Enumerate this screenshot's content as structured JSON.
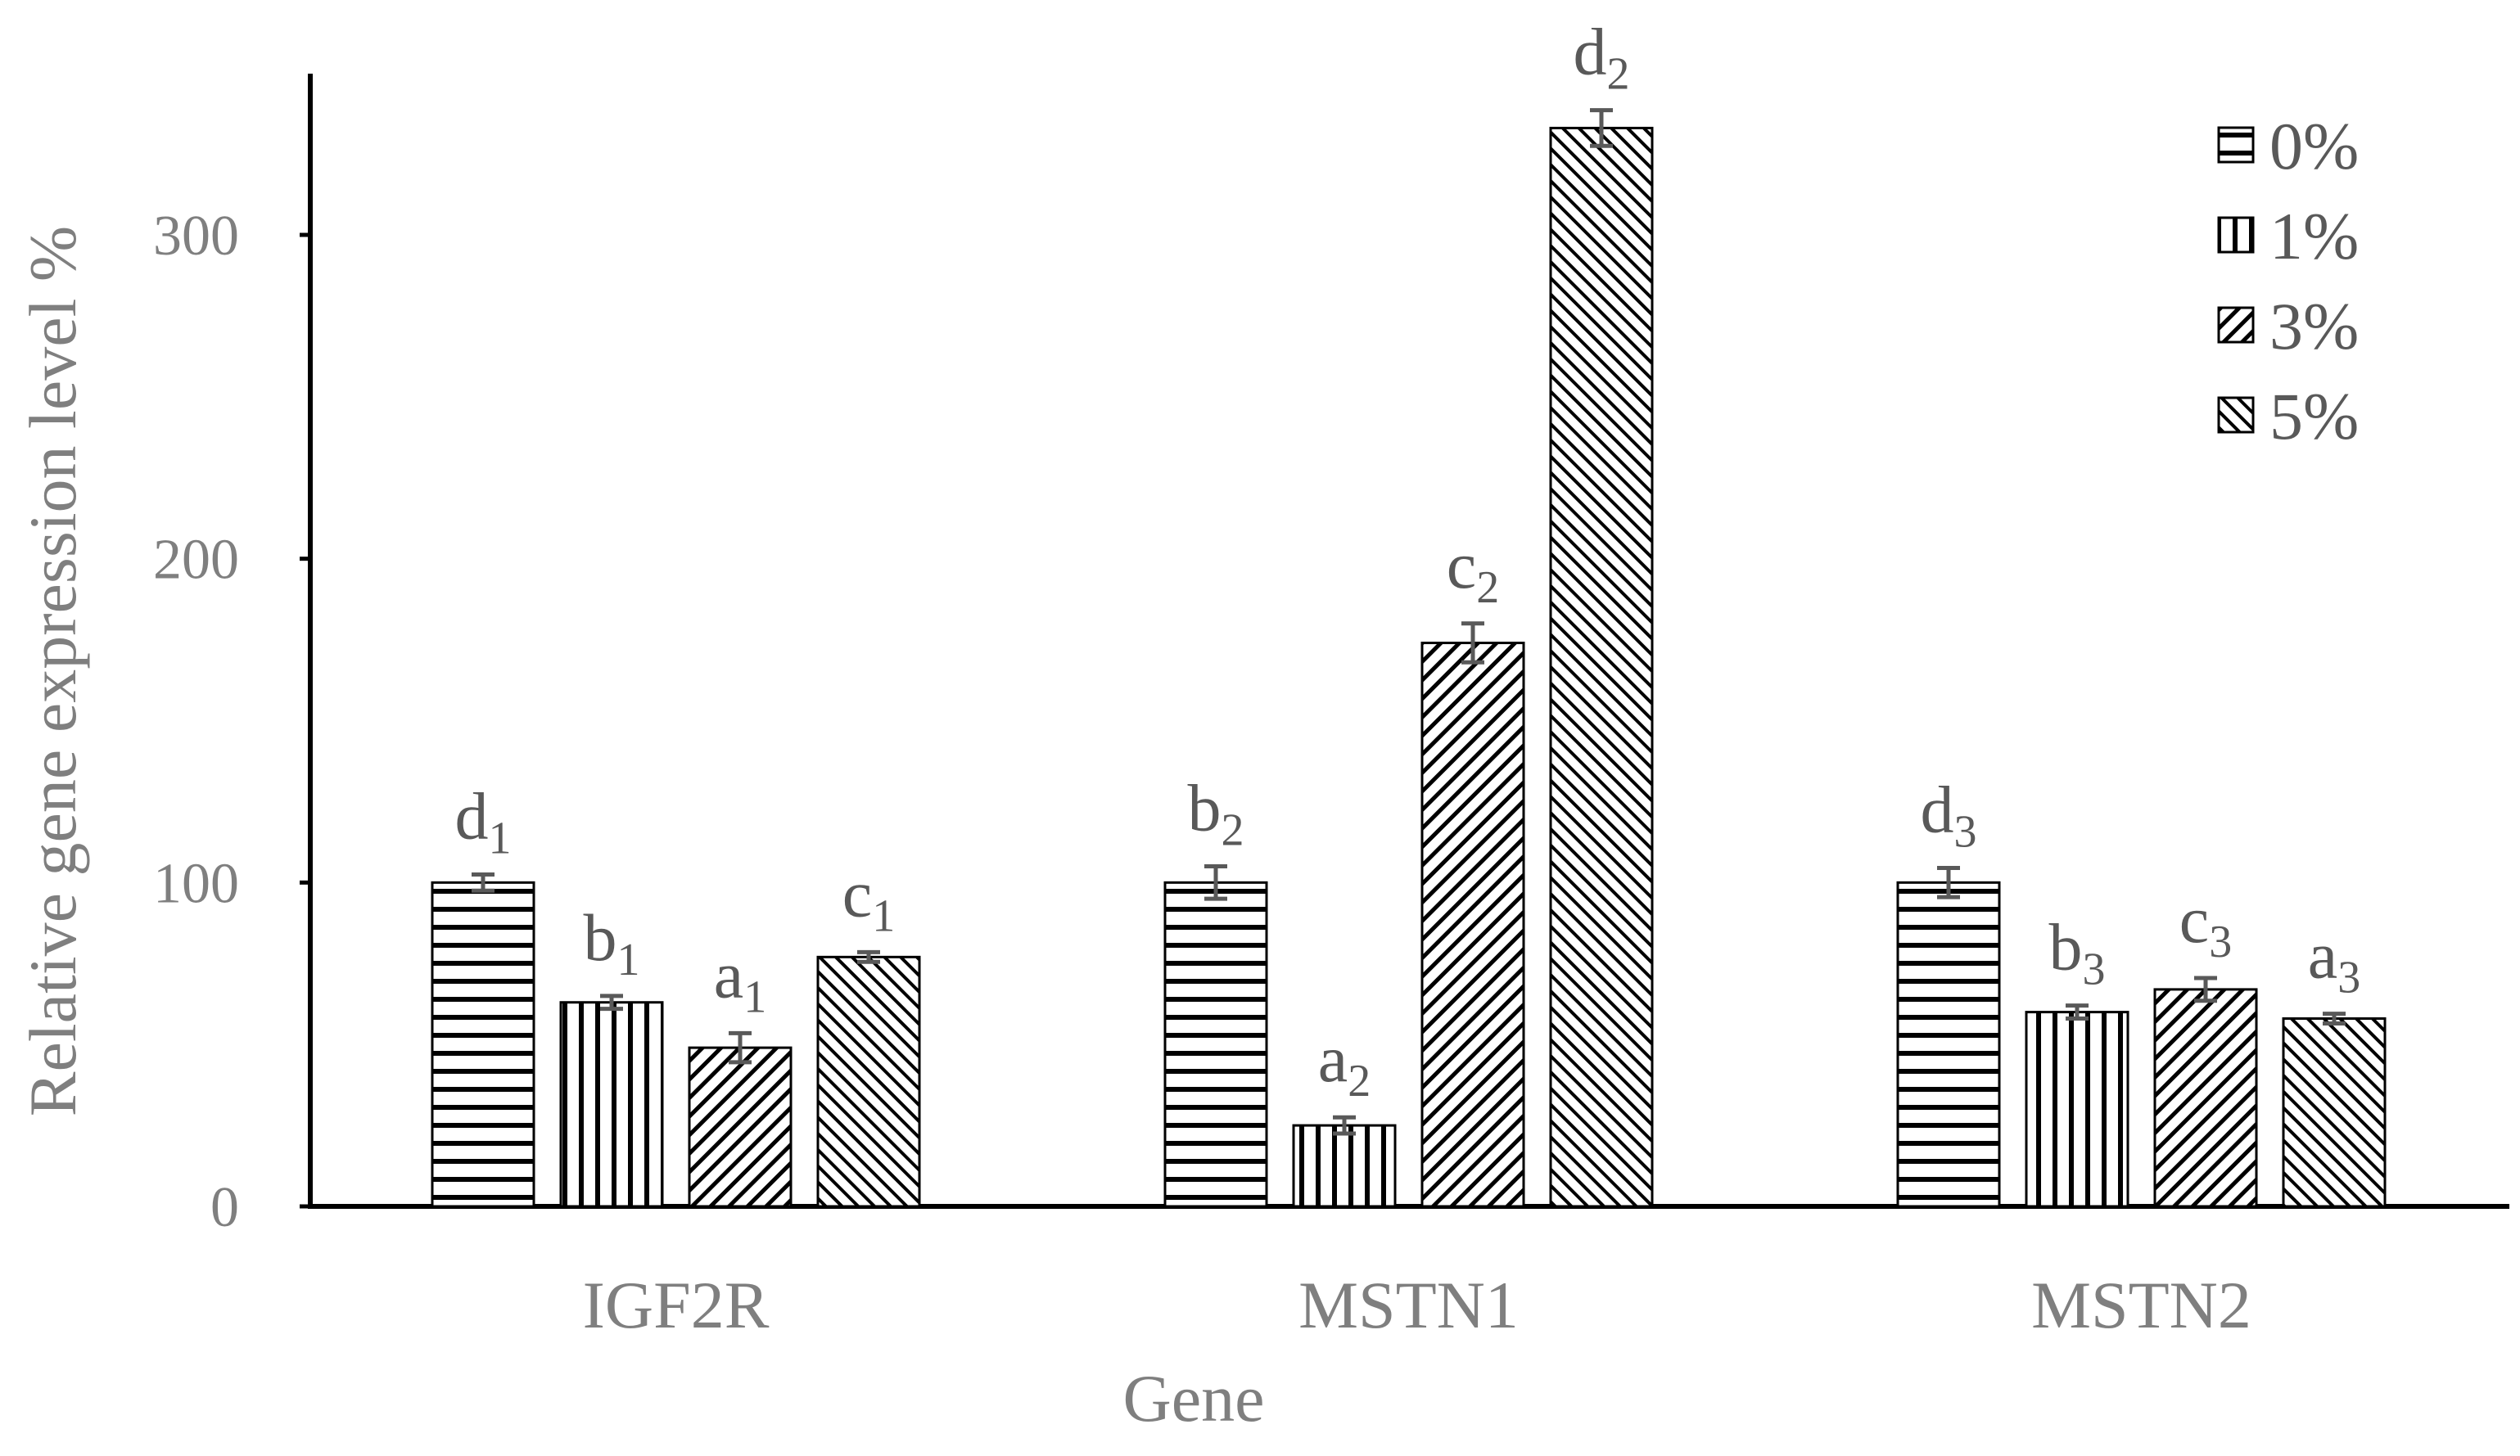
{
  "chart_data": {
    "type": "bar",
    "title": "",
    "xlabel": "Gene",
    "ylabel": "Relative gene expression level %",
    "ylim": [
      0,
      350
    ],
    "yticks": [
      0,
      100,
      200,
      300
    ],
    "ytick_labels": [
      "0",
      "100",
      "200",
      "300"
    ],
    "categories": [
      "IGF2R",
      "MSTN1",
      "MSTN2"
    ],
    "legend_position": "top-right",
    "series": [
      {
        "name": "0%",
        "pattern": "horizontal",
        "values": [
          100,
          100,
          100
        ],
        "errors": [
          2.5,
          5,
          4.5
        ],
        "labels": [
          "d1",
          "b2",
          "d3"
        ]
      },
      {
        "name": "1%",
        "pattern": "vertical",
        "values": [
          63,
          25,
          60
        ],
        "errors": [
          2,
          2.5,
          2
        ],
        "labels": [
          "b1",
          "a2",
          "b3"
        ]
      },
      {
        "name": "3%",
        "pattern": "diagonal-up",
        "values": [
          49,
          174,
          67
        ],
        "errors": [
          4.5,
          6,
          3.5
        ],
        "labels": [
          "a1",
          "c2",
          "c3"
        ]
      },
      {
        "name": "5%",
        "pattern": "diagonal-down",
        "values": [
          77,
          333,
          58
        ],
        "errors": [
          1.5,
          5.5,
          1.5
        ],
        "labels": [
          "c1",
          "d2",
          "a3"
        ]
      }
    ]
  }
}
